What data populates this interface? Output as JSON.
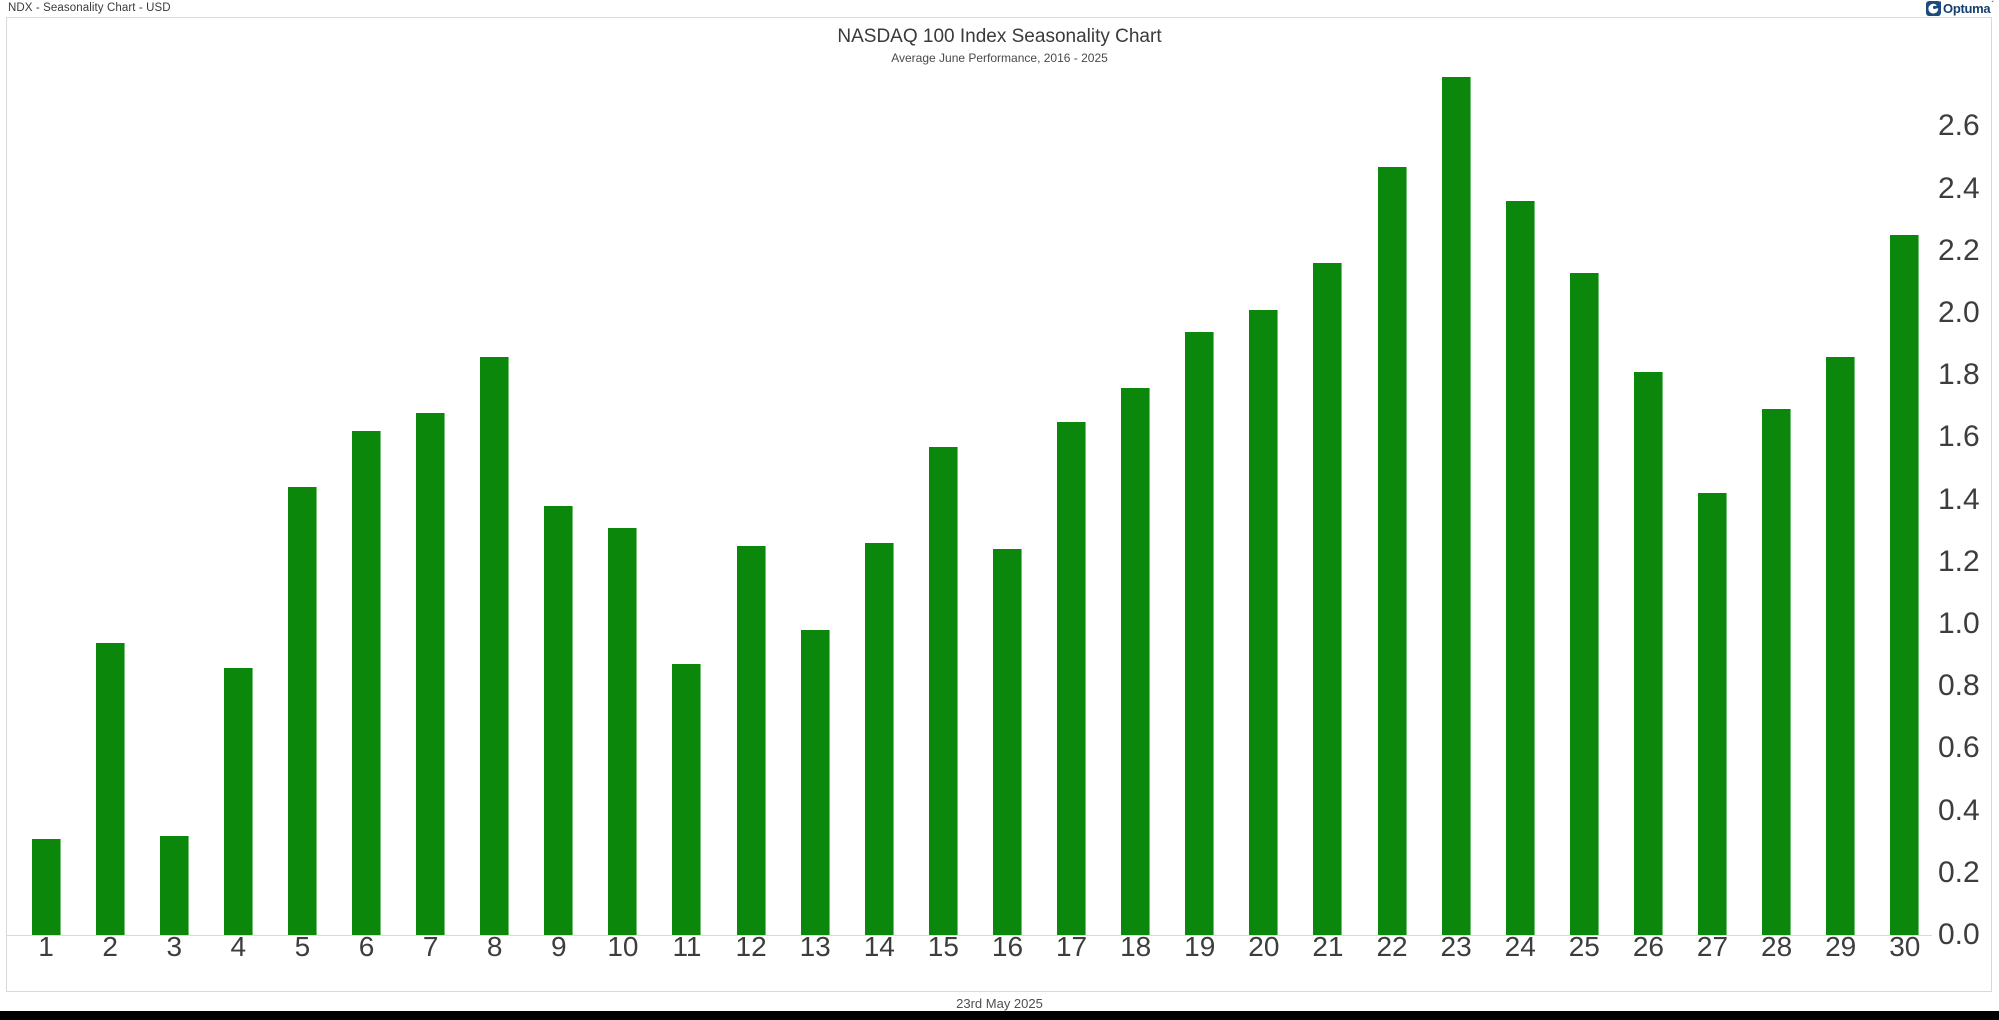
{
  "window": {
    "title": "NDX - Seasonality Chart - USD"
  },
  "brand": {
    "name": "Optuma",
    "mark": "´",
    "icon_color": "#1c4a7e",
    "text_color": "#14406f"
  },
  "chart": {
    "title": "NASDAQ 100 Index Seasonality Chart",
    "subtitle": "Average June Performance, 2016 - 2025",
    "footer_date": "23rd May 2025"
  },
  "colors": {
    "bar": "#0b870b",
    "bar_edge_highlight": "#74bd74",
    "axis_line": "#d9d9d9",
    "tick_text": "#3d3d3d",
    "bottom_strip": "#000000"
  },
  "chart_data": {
    "type": "bar",
    "title": "NASDAQ 100 Index Seasonality Chart",
    "subtitle": "Average June Performance, 2016 - 2025",
    "categories": [
      "1",
      "2",
      "3",
      "4",
      "5",
      "6",
      "7",
      "8",
      "9",
      "10",
      "11",
      "12",
      "13",
      "14",
      "15",
      "16",
      "17",
      "18",
      "19",
      "20",
      "21",
      "22",
      "23",
      "24",
      "25",
      "26",
      "27",
      "28",
      "29",
      "30"
    ],
    "values": [
      0.31,
      0.94,
      0.32,
      0.86,
      1.44,
      1.62,
      1.68,
      1.86,
      1.38,
      1.31,
      0.87,
      1.25,
      0.98,
      1.26,
      1.57,
      1.24,
      1.65,
      1.76,
      1.94,
      2.01,
      2.16,
      2.47,
      2.76,
      2.36,
      2.13,
      1.81,
      1.42,
      1.69,
      1.86,
      2.25
    ],
    "y_ticks": [
      "2.6",
      "2.4",
      "2.2",
      "2.0",
      "1.8",
      "1.6",
      "1.4",
      "1.2",
      "1.0",
      "0.8",
      "0.6",
      "0.4",
      "0.2",
      "0.0"
    ],
    "ylim": [
      0,
      2.8
    ],
    "y_axis_side": "right",
    "grid": false,
    "legend": false,
    "bar_color": "#0b870b"
  }
}
